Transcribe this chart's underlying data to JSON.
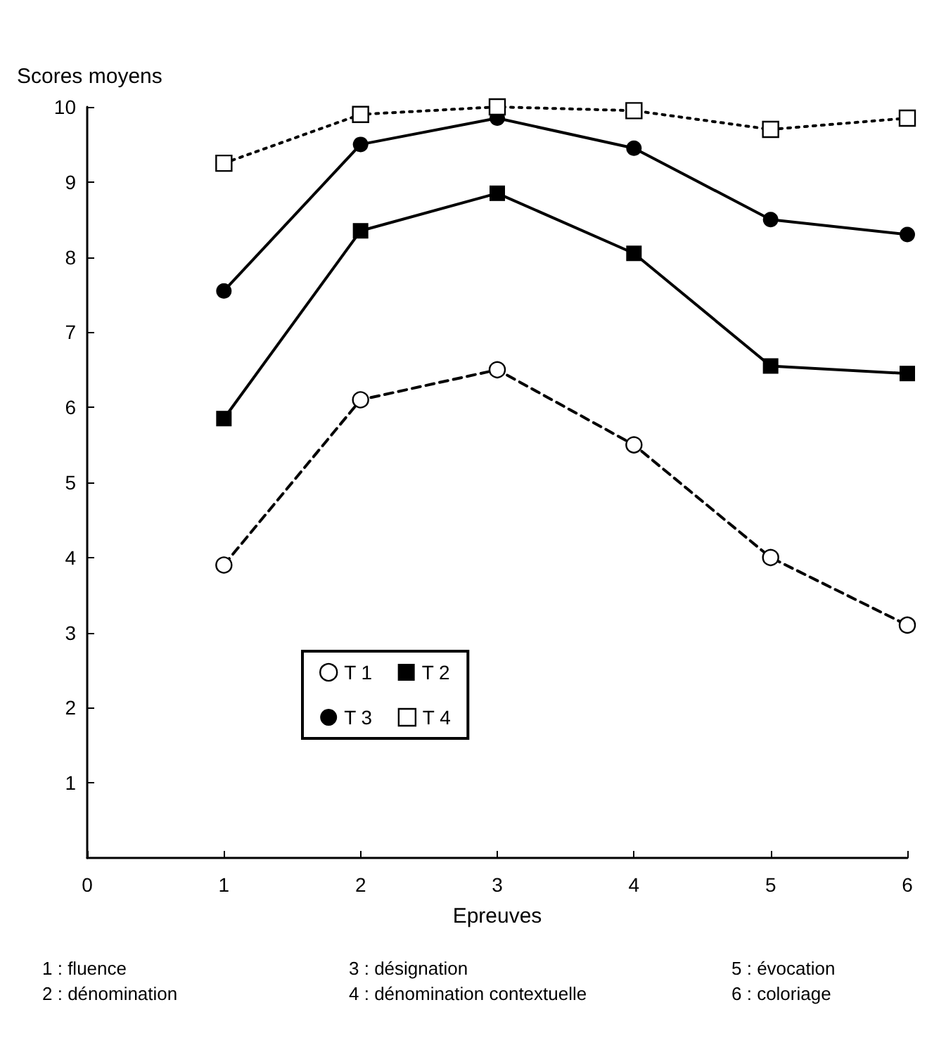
{
  "chart_data": {
    "type": "line",
    "ylabel": "Scores moyens",
    "xlabel": "Epreuves",
    "x": [
      1,
      2,
      3,
      4,
      5,
      6
    ],
    "xlim": [
      0,
      6
    ],
    "xticks": [
      0,
      1,
      2,
      3,
      4,
      5,
      6
    ],
    "ylim": [
      0,
      10
    ],
    "yticks": [
      1,
      2,
      3,
      4,
      5,
      6,
      7,
      8,
      9,
      10
    ],
    "legend": "bottom",
    "series": [
      {
        "name": "T 1",
        "color": "#000000",
        "marker": "circle",
        "colors": [
          "#ffffff",
          "#ffffff",
          "#ffffff",
          "#ffffff",
          "#ffffff",
          "#ffffff"
        ],
        "line_style": "dashed",
        "values": [
          3.9,
          6.1,
          6.5,
          5.5,
          4.0,
          3.1
        ]
      },
      {
        "name": "T 2",
        "color": "#000000",
        "marker": "square",
        "line_style": "solid",
        "values": [
          5.85,
          8.35,
          8.85,
          8.05,
          6.55,
          6.45
        ]
      },
      {
        "name": "T 3",
        "color": "#000000",
        "marker": "circle",
        "line_style": "solid",
        "values": [
          7.55,
          9.5,
          9.85,
          9.45,
          8.5,
          8.3
        ]
      },
      {
        "name": "T 4",
        "color": "#000000",
        "marker": "square",
        "colors": [
          "#ffffff",
          "#ffffff",
          "#ffffff",
          "#ffffff",
          "#ffffff",
          "#ffffff"
        ],
        "line_style": "dotted",
        "values": [
          9.25,
          9.9,
          10.0,
          9.95,
          9.7,
          9.85
        ]
      }
    ],
    "annotations": [
      "1 : fluence",
      "2 : dénomination",
      "3 : désignation",
      "4 : dénomination contextuelle",
      "5 : évocation",
      "6 : coloriage"
    ]
  }
}
